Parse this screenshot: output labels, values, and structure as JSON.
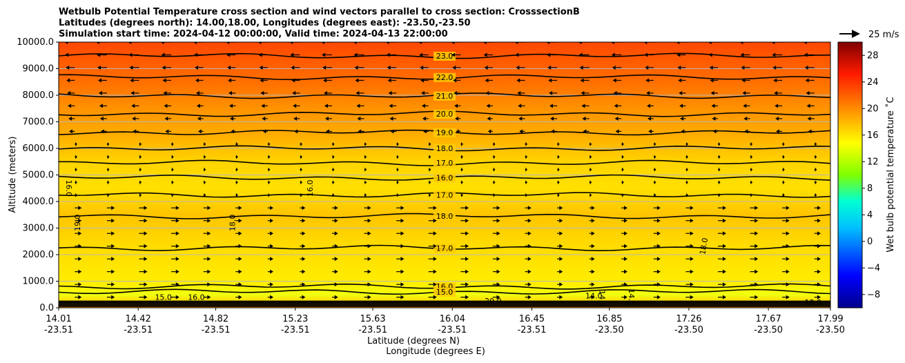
{
  "chart_data": {
    "type": "cross-section-contour",
    "title_lines": [
      "Wetbulb Potential Temperature cross section and wind vectors parallel to cross section: CrosssectionB",
      "Latitudes (degrees north): 14.00,18.00, Longitudes (degrees east): -23.50,-23.50",
      "Simulation start time: 2024-04-12 00:00:00, Valid time: 2024-04-13 22:00:00"
    ],
    "ylabel": "Altitude (meters)",
    "xlabel_lat": "Latitude (degrees N)",
    "xlabel_lon": "Longitude (degrees E)",
    "xlim": [
      14.01,
      17.99
    ],
    "ylim": [
      0,
      10000
    ],
    "y_ticks": [
      0,
      1000,
      2000,
      3000,
      4000,
      5000,
      6000,
      7000,
      8000,
      9000,
      10000
    ],
    "y_tick_labels": [
      "0.0",
      "1000.0",
      "2000.0",
      "3000.0",
      "4000.0",
      "5000.0",
      "6000.0",
      "7000.0",
      "8000.0",
      "9000.0",
      "10000.0"
    ],
    "x_ticks": [
      {
        "value": 14.01,
        "lat": "14.01",
        "lon": "-23.51"
      },
      {
        "value": 14.42,
        "lat": "14.42",
        "lon": "-23.51"
      },
      {
        "value": 14.82,
        "lat": "14.82",
        "lon": "-23.51"
      },
      {
        "value": 15.23,
        "lat": "15.23",
        "lon": "-23.51"
      },
      {
        "value": 15.63,
        "lat": "15.63",
        "lon": "-23.51"
      },
      {
        "value": 16.04,
        "lat": "16.04",
        "lon": "-23.51"
      },
      {
        "value": 16.45,
        "lat": "16.45",
        "lon": "-23.51"
      },
      {
        "value": 16.85,
        "lat": "16.85",
        "lon": "-23.50"
      },
      {
        "value": 17.26,
        "lat": "17.26",
        "lon": "-23.50"
      },
      {
        "value": 17.67,
        "lat": "17.67",
        "lon": "-23.50"
      },
      {
        "value": 17.99,
        "lat": "17.99",
        "lon": "-23.50"
      }
    ],
    "grid": "horizontal",
    "colorbar": {
      "label": "Wet bulb potential temperature $^\\circ$C",
      "label_text": "Wet bulb potential temperature ˚C",
      "range": [
        -10,
        30
      ],
      "ticks": [
        -8,
        -4,
        0,
        4,
        8,
        12,
        16,
        20,
        24,
        28
      ],
      "tick_labels": [
        "−8",
        "−4",
        "0",
        "4",
        "8",
        "12",
        "16",
        "20",
        "24",
        "28"
      ]
    },
    "quiver_key": {
      "label": "25 m/s",
      "value": 25
    },
    "contour_lines": [
      {
        "level": 23.0,
        "label": "23.0",
        "alt": 9480
      },
      {
        "level": 22.0,
        "label": "22.0",
        "alt": 8680
      },
      {
        "level": 21.0,
        "label": "21.0",
        "alt": 7980
      },
      {
        "level": 20.0,
        "label": "20.0",
        "alt": 7300
      },
      {
        "level": 19.0,
        "label": "19.0",
        "alt": 6600
      },
      {
        "level": 18.0,
        "label": "18.0",
        "alt": 6000
      },
      {
        "level": 17.0,
        "label": "17.0",
        "alt": 5450
      },
      {
        "level": 16.0,
        "label": "16.0",
        "alt": 4900
      },
      {
        "level": 17.0,
        "label": "17.0",
        "alt": 4250
      },
      {
        "level": 18.0,
        "label": "18.0",
        "alt": 3450
      },
      {
        "level": 17.0,
        "label": "17.0",
        "alt": 2250
      },
      {
        "level": 16.0,
        "label": "16.0",
        "alt": 800
      },
      {
        "level": 15.0,
        "label": "15.0",
        "alt": 600
      }
    ],
    "extra_labels": [
      "19.0",
      "16.0",
      "18.0",
      "16.0",
      "14.0",
      "15.0",
      "14.0",
      "18.0",
      "14.0",
      "16.0",
      "20.0",
      "18.0"
    ],
    "field_description_levels": [
      {
        "alt": 0,
        "value": 19
      },
      {
        "alt": 500,
        "value": 15
      },
      {
        "alt": 1000,
        "value": 16.5
      },
      {
        "alt": 2000,
        "value": 17
      },
      {
        "alt": 3500,
        "value": 18
      },
      {
        "alt": 4600,
        "value": 16.5
      },
      {
        "alt": 5500,
        "value": 17
      },
      {
        "alt": 6500,
        "value": 19
      },
      {
        "alt": 7500,
        "value": 20.5
      },
      {
        "alt": 8500,
        "value": 22
      },
      {
        "alt": 10000,
        "value": 24
      }
    ]
  }
}
